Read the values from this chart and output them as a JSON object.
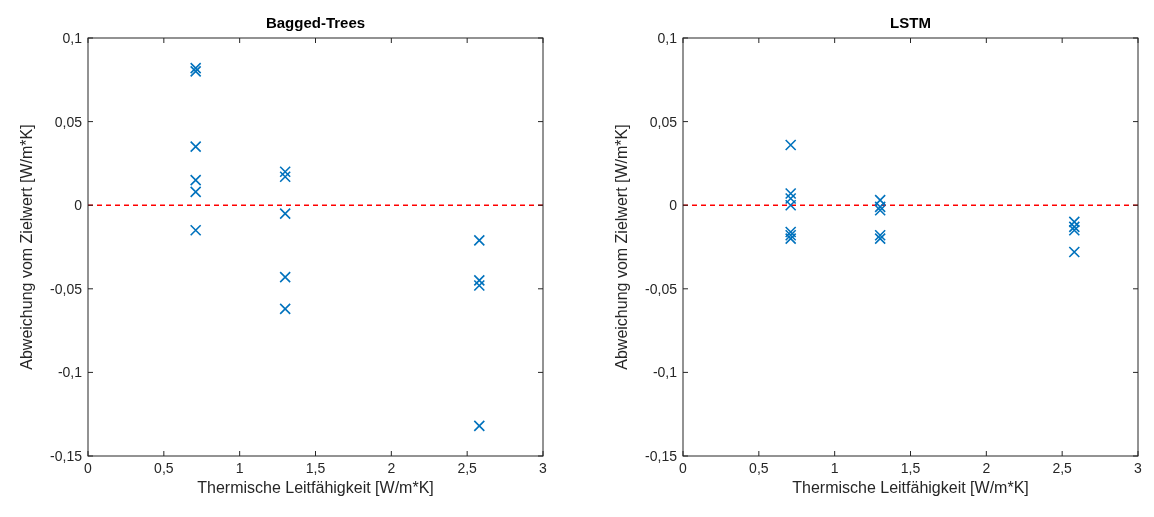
{
  "chart_data": [
    {
      "type": "scatter",
      "title": "Bagged-Trees",
      "xlabel": "Thermische Leitfähigkeit [W/m*K]",
      "ylabel": "Abweichung vom Zielwert [W/m*K]",
      "marker": "cross",
      "grid": false,
      "series": [
        {
          "color": "#0072bd",
          "x": [
            0.71,
            0.71,
            0.71,
            0.71,
            0.71,
            0.71,
            1.3,
            1.3,
            1.3,
            1.3,
            1.3,
            2.58,
            2.58,
            2.58,
            2.58
          ],
          "values": [
            0.082,
            0.08,
            0.035,
            0.015,
            0.008,
            -0.015,
            0.02,
            0.017,
            -0.005,
            -0.043,
            -0.062,
            -0.021,
            -0.045,
            -0.048,
            -0.132
          ]
        }
      ],
      "xlim": [
        0,
        3
      ],
      "xticks": [
        {
          "value": 0,
          "label": "0"
        },
        {
          "value": 0.5,
          "label": "0,5"
        },
        {
          "value": 1,
          "label": "1"
        },
        {
          "value": 1.5,
          "label": "1,5"
        },
        {
          "value": 2,
          "label": "2"
        },
        {
          "value": 2.5,
          "label": "2,5"
        },
        {
          "value": 3,
          "label": "3"
        }
      ],
      "ylim": [
        -0.15,
        0.1
      ],
      "yticks": [
        {
          "value": -0.15,
          "label": "-0,15"
        },
        {
          "value": -0.1,
          "label": "-0,1"
        },
        {
          "value": -0.05,
          "label": "-0,05"
        },
        {
          "value": 0,
          "label": "0"
        },
        {
          "value": 0.05,
          "label": "0,05"
        },
        {
          "value": 0.1,
          "label": "0,1"
        }
      ],
      "ref_lines": [
        {
          "axis": "y",
          "value": 0,
          "color": "#ff0000",
          "line_style": "dashed"
        }
      ]
    },
    {
      "type": "scatter",
      "title": "LSTM",
      "xlabel": "Thermische Leitfähigkeit [W/m*K]",
      "ylabel": "Abweichung vom Zielwert [W/m*K]",
      "marker": "cross",
      "grid": false,
      "series": [
        {
          "color": "#0072bd",
          "x": [
            0.71,
            0.71,
            0.71,
            0.71,
            0.71,
            0.71,
            0.71,
            1.3,
            1.3,
            1.3,
            1.3,
            1.3,
            2.58,
            2.58,
            2.58,
            2.58
          ],
          "values": [
            0.036,
            0.007,
            0.004,
            0.0,
            -0.016,
            -0.018,
            -0.02,
            0.003,
            -0.001,
            -0.003,
            -0.018,
            -0.02,
            -0.01,
            -0.013,
            -0.015,
            -0.028
          ]
        }
      ],
      "xlim": [
        0,
        3
      ],
      "xticks": [
        {
          "value": 0,
          "label": "0"
        },
        {
          "value": 0.5,
          "label": "0,5"
        },
        {
          "value": 1,
          "label": "1"
        },
        {
          "value": 1.5,
          "label": "1,5"
        },
        {
          "value": 2,
          "label": "2"
        },
        {
          "value": 2.5,
          "label": "2,5"
        },
        {
          "value": 3,
          "label": "3"
        }
      ],
      "ylim": [
        -0.15,
        0.1
      ],
      "yticks": [
        {
          "value": -0.15,
          "label": "-0,15"
        },
        {
          "value": -0.1,
          "label": "-0,1"
        },
        {
          "value": -0.05,
          "label": "-0,05"
        },
        {
          "value": 0,
          "label": "0"
        },
        {
          "value": 0.05,
          "label": "0,05"
        },
        {
          "value": 0.1,
          "label": "0,1"
        }
      ],
      "ref_lines": [
        {
          "axis": "y",
          "value": 0,
          "color": "#ff0000",
          "line_style": "dashed"
        }
      ]
    }
  ]
}
